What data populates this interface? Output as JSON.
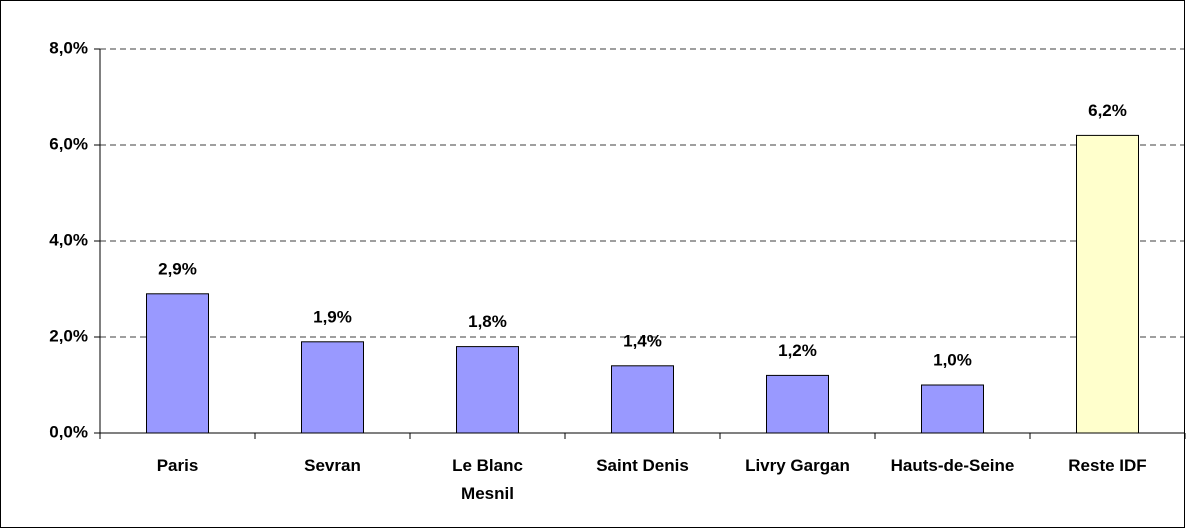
{
  "chart_data": {
    "type": "bar",
    "categories": [
      "Paris",
      "Sevran",
      "Le Blanc Mesnil",
      "Saint Denis",
      "Livry Gargan",
      "Hauts-de-Seine",
      "Reste IDF"
    ],
    "values": [
      2.9,
      1.9,
      1.8,
      1.4,
      1.2,
      1.0,
      6.2
    ],
    "value_labels": [
      "2,9%",
      "1,9%",
      "1,8%",
      "1,4%",
      "1,2%",
      "1,0%",
      "6,2%"
    ],
    "colors": [
      "#9999ff",
      "#9999ff",
      "#9999ff",
      "#9999ff",
      "#9999ff",
      "#9999ff",
      "#ffffcc"
    ],
    "ylim": [
      0,
      8
    ],
    "yticks": [
      {
        "value": 0,
        "label": "0,0%"
      },
      {
        "value": 2,
        "label": "2,0%"
      },
      {
        "value": 4,
        "label": "4,0%"
      },
      {
        "value": 6,
        "label": "6,0%"
      },
      {
        "value": 8,
        "label": "8,0%"
      }
    ],
    "grid": true
  }
}
